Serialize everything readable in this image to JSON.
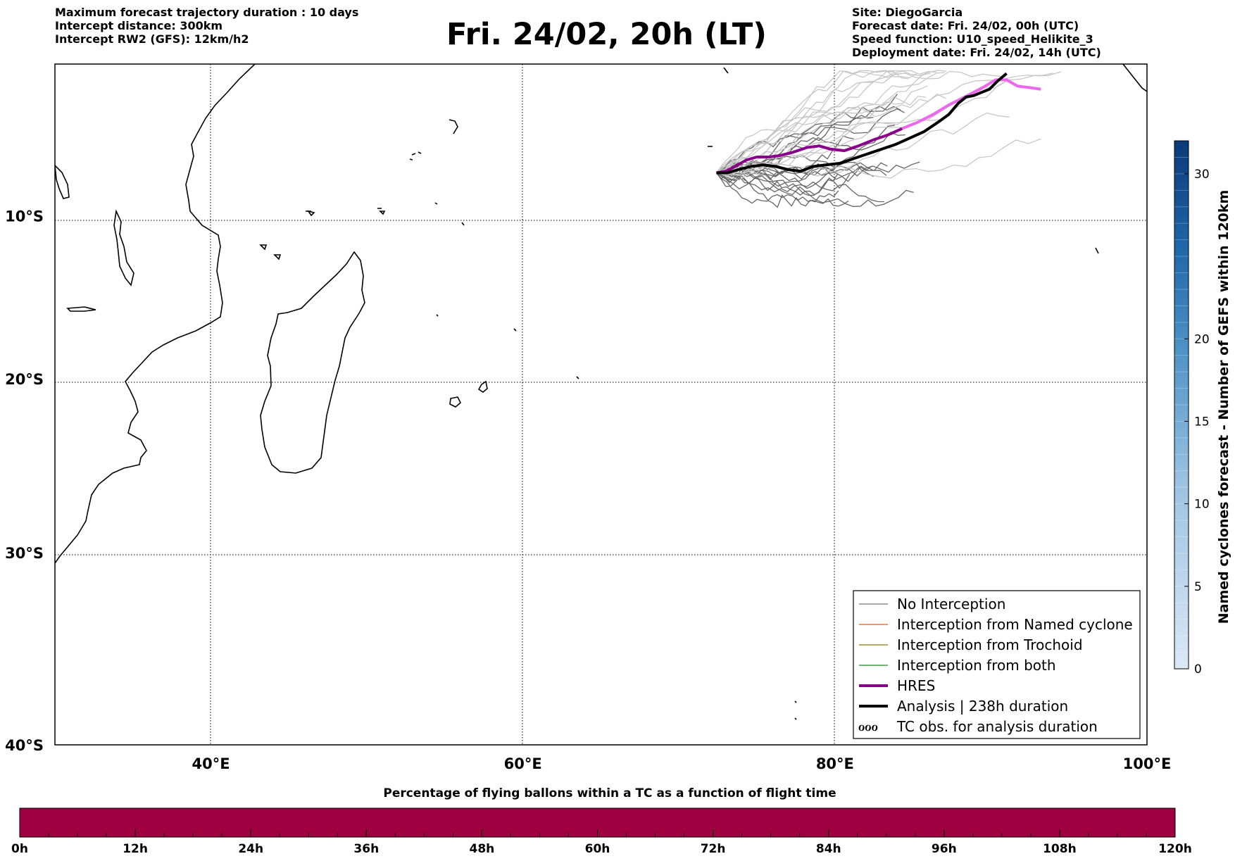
{
  "header": {
    "left_lines": [
      "Maximum forecast trajectory duration : 10 days",
      "Intercept distance: 300km",
      "Intercept RW2 (GFS):  12km/h2"
    ],
    "title": "Fri. 24/02, 20h (LT)",
    "right_lines": [
      "Site: DiegoGarcia",
      "Forecast date: Fri. 24/02, 00h (UTC)",
      "Speed function: U10_speed_Helikite_3",
      "Deployment date: Fri. 24/02, 14h (UTC)"
    ]
  },
  "map": {
    "lon_range": [
      30,
      100
    ],
    "lat_range": [
      -40,
      -0.4
    ],
    "lon_ticks": [
      {
        "value": 40,
        "label": "40°E"
      },
      {
        "value": 60,
        "label": "60°E"
      },
      {
        "value": 80,
        "label": "80°E"
      },
      {
        "value": 100,
        "label": "100°E"
      }
    ],
    "lat_ticks": [
      {
        "value": -10,
        "label": "10°S"
      },
      {
        "value": -20,
        "label": "20°S"
      },
      {
        "value": -30,
        "label": "30°S"
      },
      {
        "value": -40,
        "label": "40°S"
      }
    ],
    "grid": "dotted",
    "launch_site": {
      "lon": 72.4,
      "lat": -7.3
    },
    "colors": {
      "no_interception": "#666666",
      "light_member": "#c4c4c4",
      "named_cyclone": "#e8551c",
      "trochoid": "#8a7a10",
      "both": "#1a8a1a",
      "hres": "#8b008b",
      "hres_late": "#ee66ee",
      "analysis": "#000000"
    },
    "hres_track": [
      [
        72.4,
        -7.3
      ],
      [
        73.0,
        -7.2
      ],
      [
        73.6,
        -6.9
      ],
      [
        74.3,
        -6.5
      ],
      [
        75.0,
        -6.3
      ],
      [
        75.8,
        -6.3
      ],
      [
        76.5,
        -6.2
      ],
      [
        77.3,
        -6.0
      ],
      [
        78.2,
        -5.7
      ],
      [
        79.0,
        -5.6
      ],
      [
        79.7,
        -5.8
      ],
      [
        80.6,
        -5.9
      ],
      [
        81.5,
        -5.6
      ],
      [
        82.5,
        -5.2
      ],
      [
        83.4,
        -4.9
      ],
      [
        84.3,
        -4.5
      ],
      [
        85.3,
        -4.1
      ],
      [
        86.3,
        -3.6
      ],
      [
        87.3,
        -3.0
      ],
      [
        88.3,
        -2.5
      ],
      [
        89.3,
        -2.0
      ],
      [
        90.3,
        -1.4
      ],
      [
        91.0,
        -1.4
      ],
      [
        91.7,
        -1.8
      ],
      [
        92.5,
        -1.9
      ],
      [
        93.2,
        -2.0
      ]
    ],
    "analysis_track": [
      [
        72.4,
        -7.3
      ],
      [
        73.1,
        -7.3
      ],
      [
        73.8,
        -7.1
      ],
      [
        74.6,
        -6.9
      ],
      [
        75.4,
        -6.8
      ],
      [
        76.2,
        -6.9
      ],
      [
        77.0,
        -7.1
      ],
      [
        77.8,
        -7.2
      ],
      [
        78.6,
        -6.9
      ],
      [
        79.4,
        -6.8
      ],
      [
        80.3,
        -6.7
      ],
      [
        81.2,
        -6.4
      ],
      [
        82.1,
        -6.1
      ],
      [
        83.0,
        -5.8
      ],
      [
        83.9,
        -5.5
      ],
      [
        84.8,
        -5.1
      ],
      [
        85.7,
        -4.7
      ],
      [
        86.6,
        -4.1
      ],
      [
        87.3,
        -3.6
      ],
      [
        87.9,
        -2.9
      ],
      [
        88.4,
        -2.5
      ],
      [
        88.9,
        -2.4
      ],
      [
        89.4,
        -2.2
      ],
      [
        89.9,
        -2.0
      ],
      [
        90.4,
        -1.5
      ],
      [
        91.0,
        -1.0
      ]
    ]
  },
  "legend": {
    "items": [
      {
        "label": "No Interception",
        "style": "thin",
        "color": "#777777"
      },
      {
        "label": "Interception from Named cyclone",
        "style": "thin",
        "color": "#e8551c"
      },
      {
        "label": "Interception from Trochoid",
        "style": "thin",
        "color": "#8a7a10"
      },
      {
        "label": "Interception from both",
        "style": "thin",
        "color": "#1a8a1a"
      },
      {
        "label": "HRES",
        "style": "thick",
        "color": "#8b008b"
      },
      {
        "label": "Analysis | 238h duration",
        "style": "thick",
        "color": "#000000"
      },
      {
        "label": "TC obs. for analysis duration",
        "style": "symbol",
        "color": "#000000",
        "symbol": "ℴℴℴ"
      }
    ]
  },
  "colorbar_right": {
    "title": "Named cyclones forecast - Number of GEFS within 120km",
    "range": [
      0,
      32
    ],
    "ticks": [
      {
        "value": 0,
        "label": "0"
      },
      {
        "value": 5,
        "label": "5"
      },
      {
        "value": 10,
        "label": "10"
      },
      {
        "value": 15,
        "label": "15"
      },
      {
        "value": 20,
        "label": "20"
      },
      {
        "value": 30,
        "label": "30"
      }
    ],
    "color_low": "#dbe8f6",
    "color_high": "#0b3a78"
  },
  "colorbar_bottom": {
    "title": "Percentage of flying ballons within a TC as a function of flight time",
    "fill_color": "#9e0040",
    "value_percent_all_hours": 0,
    "ticks": [
      "0h",
      "12h",
      "24h",
      "36h",
      "48h",
      "60h",
      "72h",
      "84h",
      "96h",
      "108h",
      "120h"
    ]
  }
}
